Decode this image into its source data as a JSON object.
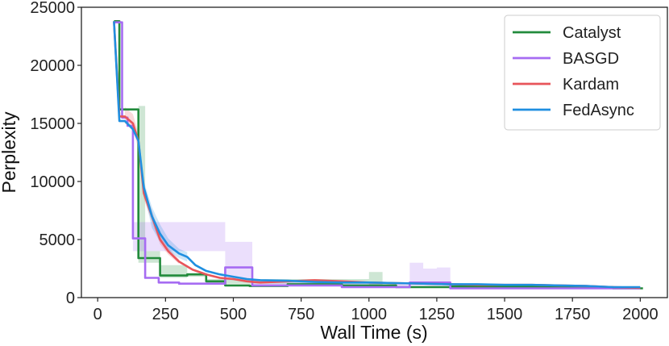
{
  "chart_data": {
    "type": "line",
    "xlabel": "Wall Time (s)",
    "ylabel": "Perplexity",
    "xlim": [
      -60,
      2100
    ],
    "ylim": [
      0,
      25000
    ],
    "xticks": [
      0,
      250,
      500,
      750,
      1000,
      1250,
      1500,
      1750,
      2000
    ],
    "yticks": [
      0,
      5000,
      10000,
      15000,
      20000,
      25000
    ],
    "xtick_labels": [
      "0",
      "250",
      "500",
      "750",
      "1000",
      "1250",
      "1500",
      "1750",
      "2000"
    ],
    "ytick_labels": [
      "0",
      "5000",
      "10000",
      "15000",
      "20000",
      "25000"
    ],
    "grid": false,
    "legend_position": "top-right",
    "series": [
      {
        "name": "Catalyst",
        "color": "#228b3c",
        "step": true,
        "x": [
          60,
          80,
          100,
          150,
          175,
          230,
          330,
          400,
          470,
          560,
          700,
          900,
          1100,
          1300,
          1500,
          1700,
          1900,
          2010
        ],
        "y": [
          23800,
          16200,
          16200,
          3400,
          3400,
          1900,
          2000,
          1400,
          1050,
          1000,
          1150,
          1050,
          900,
          950,
          950,
          900,
          800,
          800
        ],
        "band_x": [
          150,
          175,
          230,
          330,
          400,
          1000,
          1050
        ],
        "band_lo": [
          3000,
          3000,
          1700,
          1800,
          1200,
          1000,
          1000
        ],
        "band_hi": [
          16500,
          4000,
          2800,
          2100,
          1600,
          2200,
          1200
        ]
      },
      {
        "name": "BASGD",
        "color": "#a66cf2",
        "step": true,
        "x": [
          60,
          90,
          110,
          130,
          160,
          175,
          225,
          300,
          450,
          470,
          570,
          650,
          900,
          1150,
          1200,
          1250,
          1300,
          1500,
          1700,
          2000
        ],
        "y": [
          23700,
          15500,
          14800,
          5100,
          5100,
          1700,
          1300,
          1200,
          1200,
          2600,
          1050,
          1050,
          900,
          1300,
          1300,
          1300,
          800,
          800,
          800,
          800
        ],
        "band_x": [
          130,
          160,
          470,
          570,
          1150,
          1200,
          1250,
          1300
        ],
        "band_lo": [
          4000,
          4000,
          1500,
          1000,
          1000,
          1000,
          1000,
          800
        ],
        "band_hi": [
          6500,
          6500,
          4800,
          1300,
          3000,
          2500,
          2600,
          1000
        ]
      },
      {
        "name": "Kardam",
        "color": "#e8545a",
        "step": false,
        "x": [
          60,
          80,
          100,
          130,
          150,
          170,
          200,
          230,
          260,
          300,
          350,
          400,
          450,
          500,
          550,
          600,
          700,
          800,
          900,
          1000,
          1100,
          1200,
          1300,
          1400,
          1500,
          1600,
          1700,
          1800,
          1900,
          2000
        ],
        "y": [
          23800,
          15600,
          15600,
          15000,
          13500,
          9000,
          7000,
          5000,
          4000,
          3100,
          2400,
          2000,
          1700,
          1600,
          1400,
          1300,
          1400,
          1500,
          1400,
          1300,
          1250,
          1200,
          1150,
          1100,
          1100,
          1100,
          1050,
          1000,
          900,
          850
        ],
        "band_x": [
          100,
          130,
          150,
          170,
          200,
          230,
          260,
          300
        ],
        "band_lo": [
          15000,
          14500,
          12800,
          8500,
          6500,
          4600,
          3700,
          2900
        ],
        "band_hi": [
          16400,
          15800,
          14200,
          9500,
          7500,
          5400,
          4300,
          3300
        ]
      },
      {
        "name": "FedAsync",
        "color": "#1f8fe0",
        "step": false,
        "x": [
          60,
          80,
          100,
          130,
          150,
          170,
          200,
          230,
          260,
          300,
          330,
          360,
          400,
          450,
          500,
          550,
          600,
          700,
          800,
          900,
          1000,
          1100,
          1200,
          1300,
          1400,
          1500,
          1600,
          1700,
          1800,
          1900,
          2000
        ],
        "y": [
          23800,
          15200,
          15200,
          14500,
          13500,
          9500,
          7000,
          5500,
          4500,
          3800,
          3500,
          2800,
          2300,
          2000,
          1800,
          1600,
          1500,
          1450,
          1350,
          1300,
          1300,
          1250,
          1200,
          1150,
          1150,
          1100,
          1100,
          1050,
          1000,
          900,
          900
        ],
        "band_x": [
          150,
          170,
          200,
          230,
          260,
          300,
          330
        ],
        "band_lo": [
          12800,
          9000,
          6000,
          4800,
          4000,
          3400,
          3100
        ],
        "band_hi": [
          14200,
          10000,
          7800,
          6300,
          5100,
          4200,
          3900
        ]
      }
    ]
  }
}
